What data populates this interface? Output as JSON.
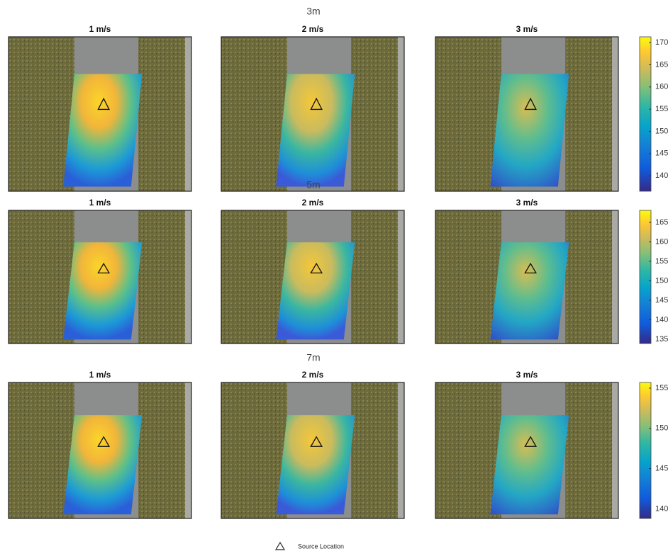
{
  "rows": [
    {
      "title": "3m",
      "panels": [
        "1 m/s",
        "2 m/s",
        "3 m/s"
      ],
      "colorbar": {
        "ylim": [
          136.5,
          171.3
        ],
        "yticks": [
          140,
          145,
          150,
          155,
          160,
          165,
          170
        ]
      }
    },
    {
      "title": "5m",
      "panels": [
        "1 m/s",
        "2 m/s",
        "3 m/s"
      ],
      "colorbar": {
        "ylim": [
          133.9,
          168.1
        ],
        "yticks": [
          135,
          140,
          145,
          150,
          155,
          160,
          165
        ]
      }
    },
    {
      "title": "7m",
      "panels": [
        "1 m/s",
        "2 m/s",
        "3 m/s"
      ],
      "colorbar": {
        "ylim": [
          138.8,
          155.7
        ],
        "yticks": [
          140,
          145,
          150,
          155
        ]
      }
    }
  ],
  "legend": "Source Location"
}
